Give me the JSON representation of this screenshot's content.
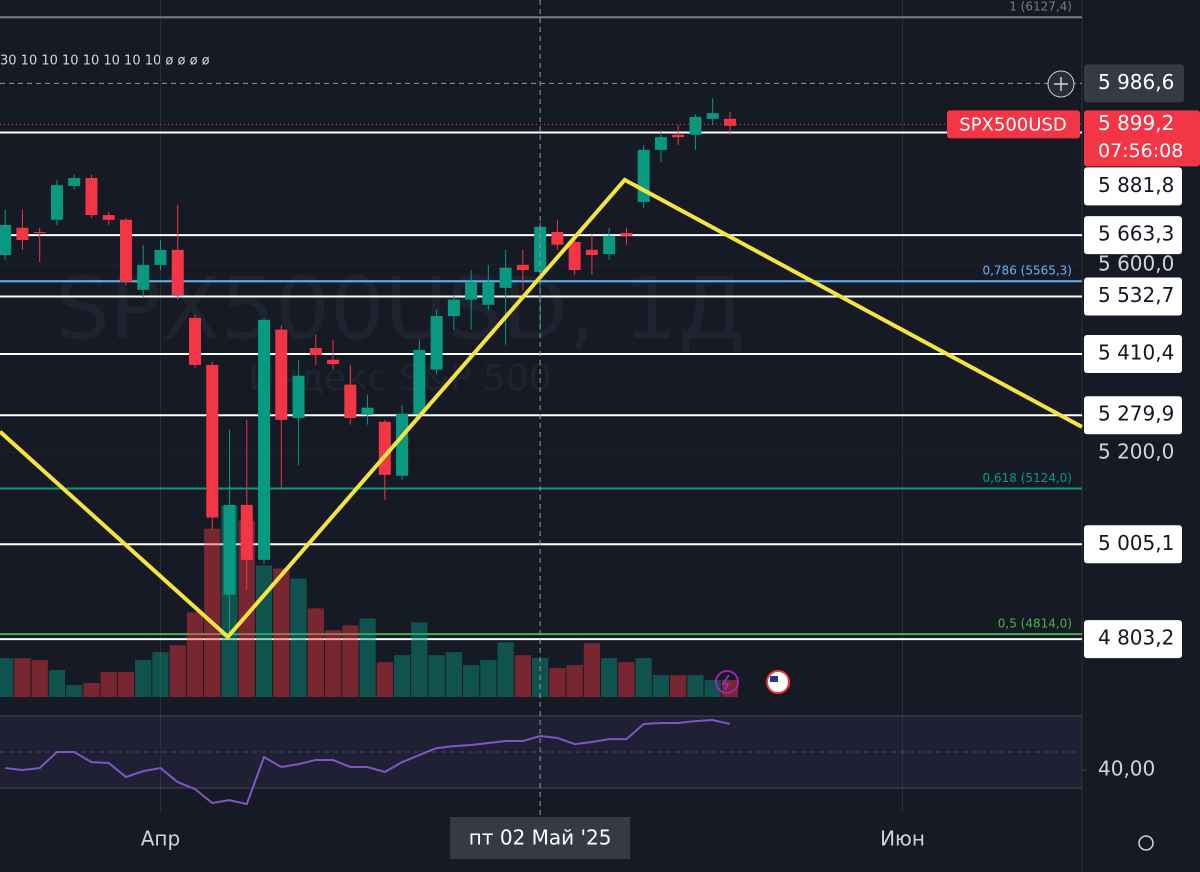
{
  "chart_data": {
    "type": "candlestick",
    "title": "SPX500USD, 1Д",
    "subtitle": "Индекс S&P 500",
    "indicator_values": "30 10 10 10 10 10 10 10 ø ø ø ø",
    "symbol": "SPX500USD",
    "last_price": {
      "value": 5899.2,
      "label": "5 899,2"
    },
    "countdown": "07:56:08",
    "up_color": "#089981",
    "down_color": "#f23645",
    "xlim": [
      -0.3,
      62.4
    ],
    "xticks": [
      {
        "value": 9,
        "label": "Апр"
      },
      {
        "value": 52,
        "label": "Июн"
      }
    ],
    "crosshair": {
      "x": {
        "value": 31,
        "label": "пт 02 Май '25"
      },
      "y": {
        "value": 5986.6,
        "label": "5 986,6"
      }
    },
    "ylim": [
      4680,
      6164
    ],
    "yticks": [
      {
        "value": 5600,
        "label": "5 600,0"
      },
      {
        "value": 5200,
        "label": "5 200,0"
      }
    ],
    "open": [
      5621,
      5679,
      5670,
      5696,
      5768,
      5785,
      5706,
      5696,
      5547,
      5600,
      5632,
      5487,
      5387,
      4898,
      5089,
      4972,
      5462,
      5274,
      5423,
      5398,
      5345,
      5281,
      5266,
      5151,
      5283,
      5377,
      5491,
      5526,
      5515,
      5551,
      5600,
      5585,
      5670,
      5649,
      5632,
      5623,
      5668,
      5734,
      5845,
      5877,
      5877,
      5911,
      5911
    ],
    "high": [
      5717,
      5717,
      5679,
      5781,
      5792,
      5792,
      5713,
      5700,
      5643,
      5653,
      5728,
      5494,
      5394,
      5249,
      5270,
      5487,
      5472,
      5398,
      5451,
      5440,
      5387,
      5323,
      5270,
      5302,
      5440,
      5504,
      5536,
      5589,
      5600,
      5632,
      5632,
      5692,
      5696,
      5653,
      5664,
      5679,
      5679,
      5855,
      5887,
      5898,
      5921,
      5955,
      5926
    ],
    "low": [
      5611,
      5632,
      5606,
      5685,
      5760,
      5700,
      5685,
      5557,
      5532,
      5589,
      5526,
      5381,
      5036,
      4808,
      4908,
      4962,
      5121,
      5174,
      5387,
      5377,
      5260,
      5260,
      5100,
      5142,
      5270,
      5366,
      5462,
      5462,
      5504,
      5430,
      5547,
      5462,
      5632,
      5579,
      5579,
      5611,
      5643,
      5721,
      5819,
      5855,
      5845,
      5898,
      5877
    ],
    "close": [
      5685,
      5653,
      5668,
      5770,
      5785,
      5706,
      5696,
      5564,
      5600,
      5632,
      5536,
      5387,
      5062,
      5089,
      4972,
      5483,
      5270,
      5364,
      5408,
      5389,
      5274,
      5296,
      5153,
      5283,
      5419,
      5491,
      5526,
      5564,
      5564,
      5594,
      5589,
      5681,
      5643,
      5589,
      5621,
      5662,
      5662,
      5845,
      5872,
      5872,
      5915,
      5923,
      5896
    ],
    "volume": [
      39,
      39,
      37,
      27,
      12,
      14,
      25,
      25,
      37,
      45,
      52,
      85,
      169,
      192,
      177,
      132,
      129,
      119,
      89,
      67,
      72,
      79,
      35,
      42,
      75,
      42,
      45,
      32,
      37,
      55,
      42,
      39,
      29,
      32,
      54,
      39,
      35,
      39,
      22,
      22,
      22,
      17,
      17
    ],
    "volume_lim": [
      0,
      700
    ],
    "levels": [
      {
        "value": 5881.8,
        "label": "5 881,8"
      },
      {
        "value": 5663.3,
        "label": "5 663,3"
      },
      {
        "value": 5532.7,
        "label": "5 532,7"
      },
      {
        "value": 5410.4,
        "label": "5 410,4"
      },
      {
        "value": 5279.9,
        "label": "5 279,9"
      },
      {
        "value": 5005.1,
        "label": "5 005,1"
      },
      {
        "value": 4803.2,
        "label": "4 803,2"
      }
    ],
    "fib_levels": [
      {
        "value": 6127.4,
        "label": "1 (6127,4)",
        "color": "#787b86"
      },
      {
        "value": 5565.3,
        "label": "0,786 (5565,3)",
        "color": "#64b5f6"
      },
      {
        "value": 5124.0,
        "label": "0,618 (5124,0)",
        "color": "#089981"
      },
      {
        "value": 4814.0,
        "label": "0,5 (4814,0)",
        "color": "#4caf50"
      }
    ],
    "zigzag": {
      "x": [
        -0.3,
        12.9,
        35.9,
        62.4
      ],
      "y": [
        5245,
        4808,
        5781,
        5255
      ],
      "color": "#f5e342"
    },
    "rsi": {
      "values": [
        41.1,
        40,
        41.1,
        50,
        50,
        44.4,
        43.9,
        36.1,
        39.4,
        41.1,
        33.3,
        29.4,
        21.7,
        23.3,
        21.1,
        47.2,
        41.7,
        43.3,
        45.6,
        45.6,
        41.7,
        41.7,
        38.9,
        44.4,
        48.3,
        52.2,
        53.3,
        53.9,
        55,
        56.1,
        56.1,
        58.9,
        57.8,
        54.4,
        55.6,
        57.2,
        57.2,
        65.6,
        66.1,
        66.1,
        67.2,
        67.8,
        65.6
      ],
      "ylim": [
        6.7,
        78.9
      ],
      "yticks": [
        {
          "value": 40,
          "label": "40,00"
        }
      ],
      "band": [
        30,
        70
      ],
      "midline": 50,
      "color": "#7e57c2"
    }
  }
}
